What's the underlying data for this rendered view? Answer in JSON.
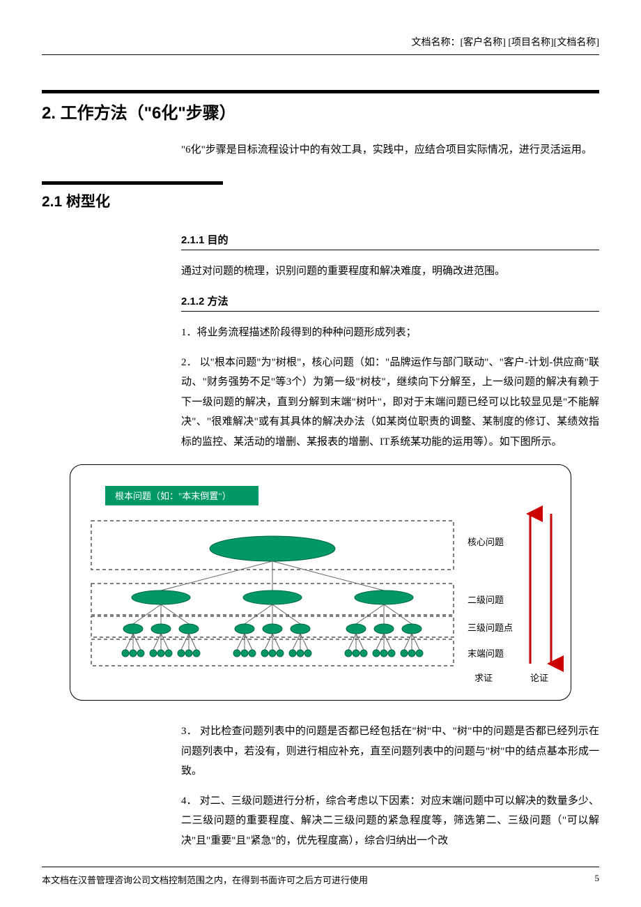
{
  "header": {
    "doc_label": "文档名称：[客户名称] [项目名称][文档名称]"
  },
  "h1": "2. 工作方法（\"6化\"步骤）",
  "intro": "\"6化\"步骤是目标流程设计中的有效工具，实践中，应结合项目实际情况，进行灵活运用。",
  "h2": "2.1 树型化",
  "s211": {
    "title": "2.1.1 目的",
    "p1": "通过对问题的梳理，识别问题的重要程度和解决难度，明确改进范围。"
  },
  "s212": {
    "title": "2.1.2 方法",
    "p1": "1．将业务流程描述阶段得到的种种问题形成列表；",
    "p2": "2． 以\"根本问题\"为\"树根\"，核心问题（如：\"品牌运作与部门联动\"、\"客户-计划-供应商\"联动、\"财务强势不足\"等3个）为第一级\"树枝\"，继续向下分解至，上一级问题的解决有赖于下一级问题的解决，直到分解到末端\"树叶\"，即对于末端问题已经可以比较显见是\"不能解决\"、\"很难解决\"或有其具体的解决办法（如某岗位职责的调整、某制度的修订、某绩效指标的监控、某活动的增删、某报表的增删、IT系统某功能的运用等）。如下图所示。",
    "p3": "3． 对比检查问题列表中的问题是否都已经包括在\"树\"中、\"树\"中的问题是否都已经列示在问题列表中，若没有，则进行相应补充，直至问题列表中的问题与\"树\"中的结点基本形成一致。",
    "p4": "4． 对二、三级问题进行分析，综合考虑以下因素：对应末端问题中可以解决的数量多少、二三级问题的重要程度、解决二三级问题的紧急程度等，筛选第二、三级问题（\"可以解决\"且\"重要\"且\"紧急\"的，优先程度高），综合归纳出一个改"
  },
  "diagram": {
    "root_label": "根本问题（如：\"本末倒置\"）",
    "levels": {
      "l1": "核心问题",
      "l2": "二级问题",
      "l3": "三级问题点",
      "l4": "末端问题"
    },
    "bottom_left": "求证",
    "bottom_right": "论证",
    "colors": {
      "node_fill": "#009966",
      "node_stroke": "#006644",
      "root_box_fill": "#009966",
      "root_box_text": "#ffffff",
      "arrow": "#cc0000",
      "dash": "#000000",
      "line": "#666666"
    }
  },
  "footer": {
    "text": "本文档在汉普管理咨询公司文档控制范围之内，在得到书面许可之后方可进行使用",
    "page": "5"
  }
}
